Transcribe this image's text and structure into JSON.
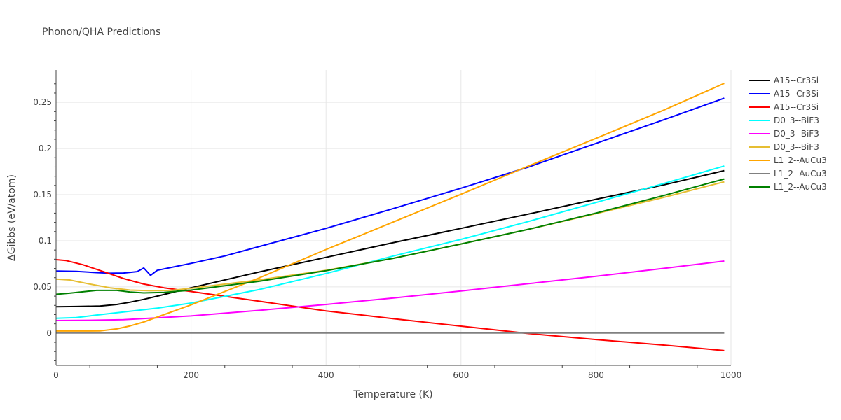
{
  "chart_data": {
    "type": "line",
    "title": "Phonon/QHA Predictions",
    "xlabel": "Temperature (K)",
    "ylabel": "ΔGibbs (eV/atom)",
    "xlim": [
      0,
      1000
    ],
    "ylim": [
      -0.035,
      0.285
    ],
    "xticks": [
      0,
      200,
      400,
      600,
      800,
      1000
    ],
    "xtick_labels": [
      "0",
      "200",
      "400",
      "600",
      "800",
      "1000"
    ],
    "yticks": [
      0,
      0.05,
      0.1,
      0.15,
      0.2,
      0.25
    ],
    "ytick_labels": [
      "0",
      "0.05",
      "0.1",
      "0.15",
      "0.2",
      "0.25"
    ],
    "grid": true,
    "legend_position": "right",
    "series": [
      {
        "name": "A15--Cr3Si",
        "color": "#000000",
        "x": [
          0,
          30,
          65,
          90,
          110,
          130,
          150,
          200,
          300,
          400,
          500,
          600,
          700,
          800,
          900,
          990
        ],
        "y": [
          0.0285,
          0.0288,
          0.0292,
          0.031,
          0.0335,
          0.0365,
          0.04,
          0.049,
          0.066,
          0.082,
          0.098,
          0.1135,
          0.129,
          0.145,
          0.1605,
          0.176
        ]
      },
      {
        "name": "A15--Cr3Si",
        "color": "#0000ff",
        "x": [
          0,
          30,
          60,
          80,
          100,
          120,
          130,
          140,
          150,
          200,
          250,
          300,
          400,
          500,
          600,
          700,
          800,
          900,
          990
        ],
        "y": [
          0.0672,
          0.0668,
          0.0655,
          0.0648,
          0.065,
          0.0665,
          0.0705,
          0.0625,
          0.068,
          0.0755,
          0.0835,
          0.0935,
          0.1135,
          0.135,
          0.157,
          0.18,
          0.2055,
          0.231,
          0.2545
        ]
      },
      {
        "name": "A15--Cr3Si",
        "color": "#ff0000",
        "x": [
          0,
          15,
          40,
          70,
          100,
          130,
          160,
          200,
          300,
          400,
          500,
          600,
          700,
          800,
          900,
          990
        ],
        "y": [
          0.0795,
          0.0785,
          0.074,
          0.0665,
          0.059,
          0.053,
          0.049,
          0.045,
          0.0345,
          0.024,
          0.0155,
          0.0075,
          -0.0005,
          -0.007,
          -0.013,
          -0.019
        ]
      },
      {
        "name": "D0_3--BiF3",
        "color": "#00ffff",
        "x": [
          0,
          30,
          60,
          100,
          150,
          200,
          300,
          400,
          500,
          600,
          700,
          800,
          900,
          990
        ],
        "y": [
          0.016,
          0.0168,
          0.0195,
          0.0228,
          0.027,
          0.0325,
          0.047,
          0.0645,
          0.0835,
          0.1015,
          0.121,
          0.1415,
          0.162,
          0.181
        ]
      },
      {
        "name": "D0_3--BiF3",
        "color": "#ff00ff",
        "x": [
          0,
          50,
          100,
          200,
          300,
          400,
          500,
          600,
          700,
          800,
          900,
          990
        ],
        "y": [
          0.0135,
          0.0138,
          0.0145,
          0.0185,
          0.0245,
          0.031,
          0.038,
          0.0455,
          0.0535,
          0.0615,
          0.07,
          0.078
        ]
      },
      {
        "name": "D0_3--BiF3",
        "color": "#e6be32",
        "x": [
          0,
          20,
          50,
          80,
          110,
          140,
          170,
          200,
          300,
          400,
          500,
          600,
          700,
          800,
          900,
          990
        ],
        "y": [
          0.0585,
          0.0575,
          0.053,
          0.049,
          0.0465,
          0.0458,
          0.0462,
          0.0485,
          0.0575,
          0.068,
          0.081,
          0.0965,
          0.1125,
          0.1295,
          0.147,
          0.164
        ]
      },
      {
        "name": "L1_2--AuCu3",
        "color": "#ffa500",
        "x": [
          0,
          30,
          65,
          90,
          110,
          130,
          160,
          200,
          300,
          400,
          500,
          600,
          700,
          800,
          900,
          990
        ],
        "y": [
          0.0022,
          0.0022,
          0.0023,
          0.0045,
          0.0078,
          0.012,
          0.02,
          0.0305,
          0.0595,
          0.0905,
          0.1205,
          0.1505,
          0.181,
          0.211,
          0.2415,
          0.2705
        ]
      },
      {
        "name": "L1_2--AuCu3",
        "color": "#808080",
        "x": [
          0,
          990
        ],
        "y": [
          0.0,
          0.0
        ]
      },
      {
        "name": "L1_2--AuCu3",
        "color": "#008000",
        "x": [
          0,
          20,
          60,
          90,
          110,
          130,
          160,
          200,
          300,
          400,
          500,
          600,
          700,
          800,
          900,
          990
        ],
        "y": [
          0.042,
          0.0432,
          0.0462,
          0.0462,
          0.0445,
          0.0435,
          0.044,
          0.0465,
          0.056,
          0.0675,
          0.081,
          0.0965,
          0.1125,
          0.13,
          0.149,
          0.167
        ]
      }
    ]
  }
}
